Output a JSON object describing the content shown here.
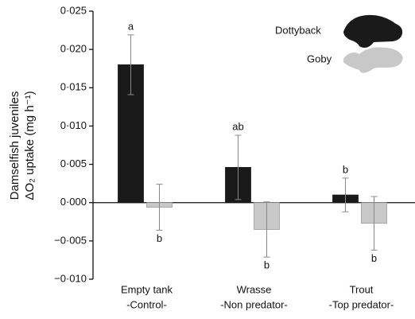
{
  "chart_data": {
    "type": "bar",
    "ylabel": [
      "Damselfish juveniles",
      "ΔO₂ uptake (mg h⁻¹)"
    ],
    "categories": [
      [
        "Empty tank",
        "-Control-"
      ],
      [
        "Wrasse",
        "-Non predator-"
      ],
      [
        "Trout",
        "-Top predator-"
      ]
    ],
    "series": [
      {
        "name": "Dottyback",
        "color": "#1a1a1a",
        "values": [
          0.018,
          0.0046,
          0.001
        ],
        "errors": [
          0.0039,
          0.0042,
          0.0022
        ],
        "letters": [
          "a",
          "ab",
          "b"
        ]
      },
      {
        "name": "Goby",
        "color": "#c8c8c8",
        "values": [
          -0.0006,
          -0.0035,
          -0.0027
        ],
        "errors": [
          0.003,
          0.0036,
          0.0035
        ],
        "letters": [
          "b",
          "b",
          "b"
        ]
      }
    ],
    "ylim": [
      -0.01,
      0.025
    ],
    "yticks": [
      {
        "value": 0.025,
        "label": "0·025"
      },
      {
        "value": 0.02,
        "label": "0·020"
      },
      {
        "value": 0.015,
        "label": "0·015"
      },
      {
        "value": 0.01,
        "label": "0·010"
      },
      {
        "value": 0.005,
        "label": "0·005"
      },
      {
        "value": 0.0,
        "label": "0·000"
      },
      {
        "value": -0.005,
        "label": "−0·005"
      },
      {
        "value": -0.01,
        "label": "−0·010"
      }
    ]
  }
}
